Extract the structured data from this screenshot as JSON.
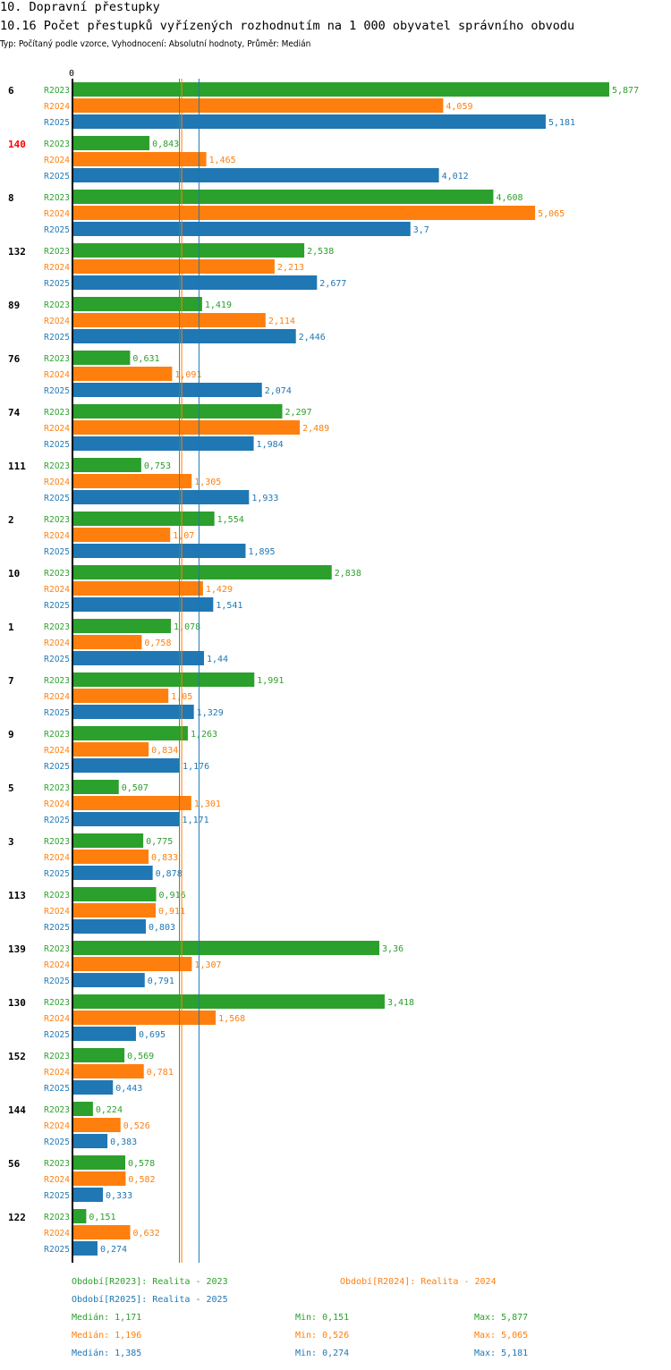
{
  "header": {
    "title": "10. Dopravní přestupky",
    "subtitle": "10.16 Počet přestupků vyřízených rozhodnutím na 1 000 obyvatel správního obvodu",
    "meta": "Typ: Počítaný podle vzorce, Vyhodnocení: Absolutní hodnoty, Průměr: Medián"
  },
  "colors": {
    "R2023": "#2ca02c",
    "R2024": "#ff7f0e",
    "R2025": "#1f77b4",
    "highlight": "#ff0000"
  },
  "chart_data": {
    "type": "bar",
    "orientation": "horizontal",
    "title": "10.16 Počet přestupků vyřízených rozhodnutím na 1 000 obyvatel správního obvodu",
    "axis_zero_label": "0",
    "xlim": [
      0,
      5.877
    ],
    "highlight_category": "140",
    "categories": [
      "6",
      "140",
      "8",
      "132",
      "89",
      "76",
      "74",
      "111",
      "2",
      "10",
      "1",
      "7",
      "9",
      "5",
      "3",
      "113",
      "139",
      "130",
      "152",
      "144",
      "56",
      "122"
    ],
    "series": [
      {
        "name": "R2023",
        "values": [
          5.877,
          0.843,
          4.608,
          2.538,
          1.419,
          0.631,
          2.297,
          0.753,
          1.554,
          2.838,
          1.078,
          1.991,
          1.263,
          0.507,
          0.775,
          0.916,
          3.36,
          3.418,
          0.569,
          0.224,
          0.578,
          0.151
        ],
        "labels": [
          "5,877",
          "0,843",
          "4,608",
          "2,538",
          "1,419",
          "0,631",
          "2,297",
          "0,753",
          "1,554",
          "2,838",
          "1,078",
          "1,991",
          "1,263",
          "0,507",
          "0,775",
          "0,916",
          "3,36",
          "3,418",
          "0,569",
          "0,224",
          "0,578",
          "0,151"
        ]
      },
      {
        "name": "R2024",
        "values": [
          4.059,
          1.465,
          5.065,
          2.213,
          2.114,
          1.091,
          2.489,
          1.305,
          1.07,
          1.429,
          0.758,
          1.05,
          0.834,
          1.301,
          0.833,
          0.911,
          1.307,
          1.568,
          0.781,
          0.526,
          0.582,
          0.632
        ],
        "labels": [
          "4,059",
          "1,465",
          "5,065",
          "2,213",
          "2,114",
          "1,091",
          "2,489",
          "1,305",
          "1,07",
          "1,429",
          "0,758",
          "1,05",
          "0,834",
          "1,301",
          "0,833",
          "0,911",
          "1,307",
          "1,568",
          "0,781",
          "0,526",
          "0,582",
          "0,632"
        ]
      },
      {
        "name": "R2025",
        "values": [
          5.181,
          4.012,
          3.7,
          2.677,
          2.446,
          2.074,
          1.984,
          1.933,
          1.895,
          1.541,
          1.44,
          1.329,
          1.176,
          1.171,
          0.878,
          0.803,
          0.791,
          0.695,
          0.443,
          0.383,
          0.333,
          0.274
        ],
        "labels": [
          "5,181",
          "4,012",
          "3,7",
          "2,677",
          "2,446",
          "2,074",
          "1,984",
          "1,933",
          "1,895",
          "1,541",
          "1,44",
          "1,329",
          "1,176",
          "1,171",
          "0,878",
          "0,803",
          "0,791",
          "0,695",
          "0,443",
          "0,383",
          "0,333",
          "0,274"
        ]
      }
    ],
    "medians": [
      1.171,
      1.196,
      1.385
    ]
  },
  "legend": {
    "periods": [
      {
        "text": "Období[R2023]: Realita - 2023"
      },
      {
        "text": "Období[R2024]: Realita - 2024"
      },
      {
        "text": "Období[R2025]: Realita - 2025"
      }
    ],
    "stats": [
      {
        "median": "Medián: 1,171",
        "min": "Min: 0,151",
        "max": "Max: 5,877"
      },
      {
        "median": "Medián: 1,196",
        "min": "Min: 0,526",
        "max": "Max: 5,065"
      },
      {
        "median": "Medián: 1,385",
        "min": "Min: 0,274",
        "max": "Max: 5,181"
      }
    ]
  }
}
